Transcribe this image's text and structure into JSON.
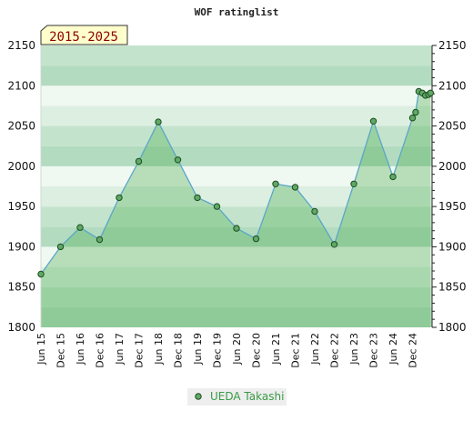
{
  "chart_data": {
    "type": "area",
    "title": "WOF ratinglist",
    "badge": "2015-2025",
    "xlabel": "",
    "ylabel": "",
    "ylim": [
      1800,
      2150
    ],
    "yticks": [
      1800,
      1850,
      1900,
      1950,
      2000,
      2050,
      2100,
      2150
    ],
    "grid": true,
    "legend_position": "bottom-center",
    "x_tick_labels": [
      "Jun 15",
      "Dec 15",
      "Jun 16",
      "Dec 16",
      "Jun 17",
      "Dec 17",
      "Jun 18",
      "Dec 18",
      "Jun 19",
      "Dec 19",
      "Jun 20",
      "Dec 20",
      "Jun 21",
      "Dec 21",
      "Jun 22",
      "Dec 22",
      "Jun 23",
      "Dec 23",
      "Jun 24",
      "Dec 24"
    ],
    "colors": {
      "line": "#5aa6c8",
      "area": "#4caf50",
      "marker_fill": "#5fa865",
      "marker_stroke": "#1e4d22",
      "band_dark": "#b2dbbf",
      "band_light": "#eef7f0",
      "badge_bg": "#ffffcc",
      "legend_text": "#3a9a45"
    },
    "series": [
      {
        "name": "UEDA Takashi",
        "points": [
          {
            "x": 2015.42,
            "y": 1866
          },
          {
            "x": 2015.92,
            "y": 1900
          },
          {
            "x": 2016.42,
            "y": 1924
          },
          {
            "x": 2016.92,
            "y": 1909
          },
          {
            "x": 2017.42,
            "y": 1961
          },
          {
            "x": 2017.92,
            "y": 2006
          },
          {
            "x": 2018.42,
            "y": 2055
          },
          {
            "x": 2018.92,
            "y": 2008
          },
          {
            "x": 2019.42,
            "y": 1961
          },
          {
            "x": 2019.92,
            "y": 1950
          },
          {
            "x": 2020.42,
            "y": 1923
          },
          {
            "x": 2020.92,
            "y": 1910
          },
          {
            "x": 2021.42,
            "y": 1978
          },
          {
            "x": 2021.92,
            "y": 1974
          },
          {
            "x": 2022.42,
            "y": 1944
          },
          {
            "x": 2022.92,
            "y": 1903
          },
          {
            "x": 2023.42,
            "y": 1978
          },
          {
            "x": 2023.92,
            "y": 2056
          },
          {
            "x": 2024.42,
            "y": 1987
          },
          {
            "x": 2024.92,
            "y": 2060
          },
          {
            "x": 2025.0,
            "y": 2067
          },
          {
            "x": 2025.08,
            "y": 2093
          },
          {
            "x": 2025.17,
            "y": 2091
          },
          {
            "x": 2025.25,
            "y": 2088
          },
          {
            "x": 2025.33,
            "y": 2089
          },
          {
            "x": 2025.38,
            "y": 2091
          }
        ]
      }
    ]
  }
}
